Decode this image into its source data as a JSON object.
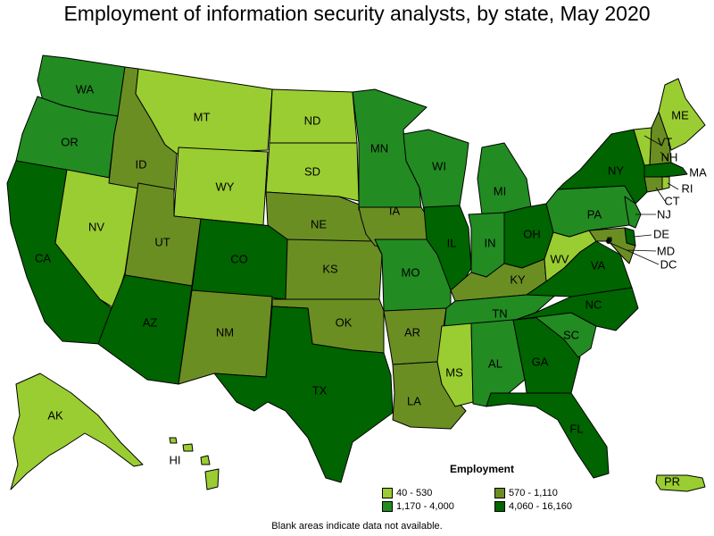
{
  "title": "Employment of information security analysts, by state, May 2020",
  "colors": {
    "class1": "#9ACD32",
    "class2": "#228B22",
    "class3": "#6B8E23",
    "class4": "#006400"
  },
  "legend": {
    "title": "Employment",
    "items": [
      {
        "label": "40 - 530",
        "color": "#9ACD32"
      },
      {
        "label": "570 - 1,110",
        "color": "#6B8E23"
      },
      {
        "label": "1,170 - 4,000",
        "color": "#228B22"
      },
      {
        "label": "4,060 - 16,160",
        "color": "#006400"
      }
    ]
  },
  "footnote": "Blank areas indicate data not available.",
  "states": {
    "WA": "WA",
    "OR": "OR",
    "CA": "CA",
    "NV": "NV",
    "ID": "ID",
    "MT": "MT",
    "WY": "WY",
    "UT": "UT",
    "AZ": "AZ",
    "CO": "CO",
    "NM": "NM",
    "ND": "ND",
    "SD": "SD",
    "NE": "NE",
    "KS": "KS",
    "OK": "OK",
    "TX": "TX",
    "MN": "MN",
    "IA": "IA",
    "MO": "MO",
    "AR": "AR",
    "LA": "LA",
    "WI": "WI",
    "IL": "IL",
    "MI": "MI",
    "IN": "IN",
    "OH": "OH",
    "KY": "KY",
    "TN": "TN",
    "MS": "MS",
    "AL": "AL",
    "GA": "GA",
    "FL": "FL",
    "SC": "SC",
    "NC": "NC",
    "VA": "VA",
    "WV": "WV",
    "PA": "PA",
    "NY": "NY",
    "ME": "ME",
    "VT": "VT",
    "NH": "NH",
    "MA": "MA",
    "RI": "RI",
    "CT": "CT",
    "NJ": "NJ",
    "DE": "DE",
    "MD": "MD",
    "DC": "DC",
    "AK": "AK",
    "HI": "HI",
    "PR": "PR"
  }
}
